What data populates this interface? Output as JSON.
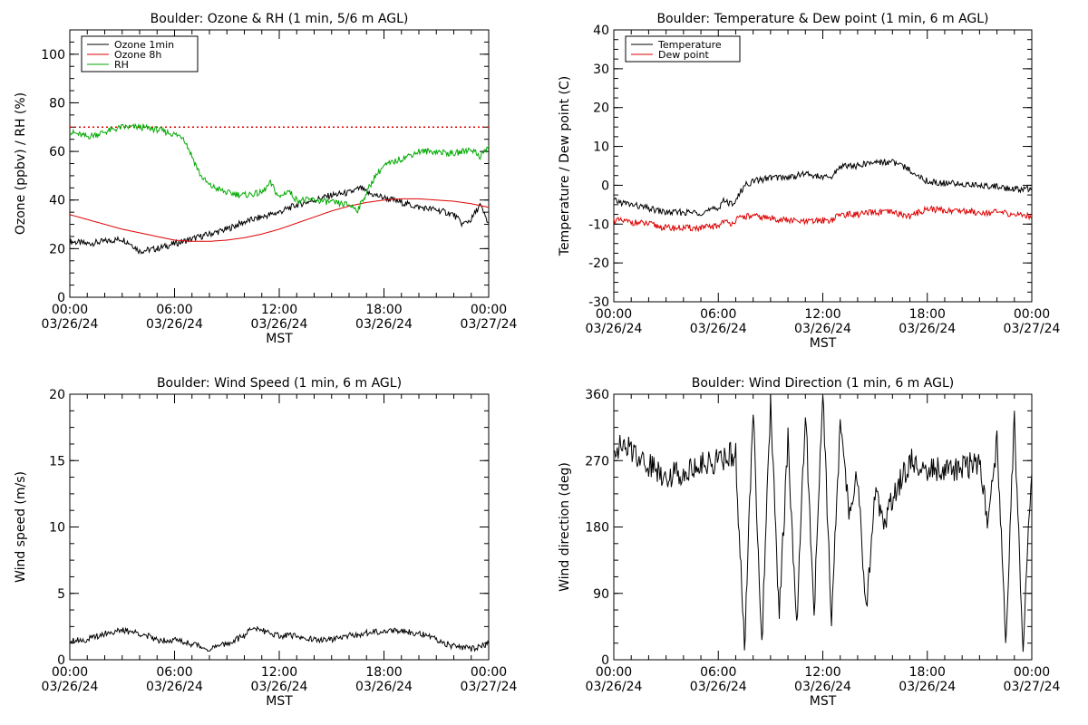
{
  "colors": {
    "black": "#000000",
    "red": "#dd0000",
    "green": "#00aa00",
    "background": "#ffffff"
  },
  "x_axis": {
    "xlabel": "MST",
    "times": [
      "00:00",
      "06:00",
      "12:00",
      "18:00",
      "00:00"
    ],
    "dates": [
      "03/26/24",
      "03/26/24",
      "03/26/24",
      "03/26/24",
      "03/27/24"
    ]
  },
  "chart_data": [
    {
      "id": "ozone",
      "type": "line",
      "title": "Boulder: Ozone & RH (1 min, 5/6 m AGL)",
      "ylabel": "Ozone (ppbv) / RH (%)",
      "xlabel": "",
      "xlim": [
        0,
        24
      ],
      "ylim": [
        0,
        110
      ],
      "yticks": [
        0,
        20,
        40,
        60,
        80,
        100
      ],
      "legend_position": "top-left",
      "reference_lines": [
        {
          "y": 70,
          "style": "dotted",
          "color": "#dd0000"
        }
      ],
      "series": [
        {
          "name": "Ozone 1min",
          "color": "#000000",
          "x": [
            0,
            1,
            2,
            3,
            3.5,
            4,
            5,
            6,
            7,
            8,
            9,
            10,
            11,
            12,
            13,
            14,
            15,
            16,
            16.7,
            17,
            18,
            19,
            20,
            21,
            22,
            22.5,
            23,
            23.5,
            24
          ],
          "y": [
            23,
            22,
            23,
            24,
            22,
            19,
            20,
            22,
            24,
            26,
            28,
            31,
            33,
            35,
            38,
            40,
            42,
            43,
            45,
            43,
            41,
            39,
            37,
            36,
            34,
            30,
            32,
            38,
            30
          ]
        },
        {
          "name": "Ozone 8h",
          "color": "#dd0000",
          "x": [
            0,
            1,
            2,
            3,
            4,
            5,
            6,
            7,
            8,
            9,
            10,
            11,
            12,
            13,
            14,
            15,
            16,
            17,
            18,
            19,
            20,
            21,
            22,
            23,
            24
          ],
          "y": [
            34,
            32,
            30,
            28,
            26.5,
            25,
            23.5,
            23,
            23,
            23.5,
            24.5,
            26,
            28,
            30.5,
            33,
            35.5,
            37.5,
            39,
            40,
            40.5,
            40.5,
            40,
            39.5,
            38.5,
            37
          ]
        },
        {
          "name": "RH",
          "color": "#00aa00",
          "x": [
            0,
            0.5,
            1,
            2,
            3,
            4,
            5,
            5.5,
            6,
            6.5,
            7,
            7.5,
            8,
            9,
            10,
            11,
            11.5,
            12,
            12.5,
            13,
            14,
            15,
            16,
            16.5,
            17,
            17.5,
            18,
            19,
            20,
            21,
            22,
            23,
            23.5,
            24
          ],
          "y": [
            68,
            67,
            66,
            68,
            70,
            70,
            69,
            68,
            67,
            66,
            58,
            50,
            46,
            43,
            42,
            43,
            47,
            41,
            44,
            40,
            40,
            39,
            38,
            36,
            43,
            50,
            54,
            57,
            60,
            60,
            59,
            61,
            58,
            62
          ]
        }
      ]
    },
    {
      "id": "temperature",
      "type": "line",
      "title": "Boulder: Temperature & Dew point (1 min, 6 m AGL)",
      "ylabel": "Temperature / Dew point (C)",
      "xlabel": "MST",
      "xlim": [
        0,
        24
      ],
      "ylim": [
        -30,
        40
      ],
      "yticks": [
        -30,
        -20,
        -10,
        0,
        10,
        20,
        30,
        40
      ],
      "legend_position": "top-left",
      "series": [
        {
          "name": "Temperature",
          "color": "#000000",
          "x": [
            0,
            1,
            2,
            3,
            4,
            5,
            6,
            6.3,
            6.6,
            7,
            7.5,
            8,
            9,
            10,
            11,
            12,
            12.5,
            13,
            14,
            15,
            16,
            17,
            18,
            19,
            20,
            21,
            22,
            23,
            24
          ],
          "y": [
            -4,
            -5,
            -6,
            -7,
            -7,
            -7,
            -6,
            -3.5,
            -5,
            -4,
            0,
            1,
            2,
            2,
            3,
            2,
            2,
            5,
            5,
            6,
            6,
            4,
            1,
            0.5,
            0.3,
            0,
            -0.3,
            -1,
            -1
          ]
        },
        {
          "name": "Dew point",
          "color": "#dd0000",
          "x": [
            0,
            1,
            2,
            3,
            4,
            5,
            6,
            6.3,
            6.6,
            7,
            7.5,
            8,
            9,
            10,
            11,
            12,
            12.5,
            13,
            14,
            15,
            16,
            17,
            18,
            19,
            20,
            21,
            22,
            23,
            24
          ],
          "y": [
            -9,
            -9.5,
            -10,
            -11,
            -11,
            -11,
            -10.5,
            -9,
            -10,
            -9,
            -8,
            -8,
            -8.5,
            -9,
            -9.5,
            -9,
            -9,
            -7.5,
            -7.5,
            -7,
            -7,
            -8,
            -6,
            -6.5,
            -6.5,
            -7,
            -7,
            -7.5,
            -8
          ]
        }
      ]
    },
    {
      "id": "windspeed",
      "type": "line",
      "title": "Boulder: Wind Speed (1 min, 6 m AGL)",
      "ylabel": "Wind speed (m/s)",
      "xlabel": "MST",
      "xlim": [
        0,
        24
      ],
      "ylim": [
        0,
        20
      ],
      "yticks": [
        0,
        5,
        10,
        15,
        20
      ],
      "series": [
        {
          "name": "",
          "color": "#000000",
          "x": [
            0,
            1,
            2,
            3,
            4,
            5,
            6,
            7,
            8,
            9,
            10,
            10.5,
            11,
            12,
            13,
            14,
            15,
            16,
            17,
            18,
            19,
            20,
            21,
            22,
            23,
            24
          ],
          "y": [
            1.5,
            1.5,
            2,
            2.2,
            2,
            1.5,
            1.5,
            1.2,
            0.8,
            1.2,
            1.8,
            2.5,
            2.2,
            1.8,
            1.8,
            1.5,
            1.5,
            1.8,
            2,
            2.2,
            2.2,
            2,
            1.5,
            1,
            0.8,
            1.2
          ]
        }
      ]
    },
    {
      "id": "winddir",
      "type": "line",
      "title": "Boulder: Wind Direction (1 min, 6 m AGL)",
      "ylabel": "Wind direction (deg)",
      "xlabel": "MST",
      "xlim": [
        0,
        24
      ],
      "ylim": [
        0,
        360
      ],
      "yticks": [
        0,
        90,
        180,
        270,
        360
      ],
      "series": [
        {
          "name": "",
          "color": "#000000",
          "x": [
            0,
            1,
            2,
            3,
            4,
            5,
            6,
            7,
            7.5,
            8,
            8.5,
            9,
            9.5,
            10,
            10.5,
            11,
            11.5,
            12,
            12.5,
            13,
            13.5,
            14,
            14.5,
            15,
            15.5,
            16,
            17,
            18,
            19,
            20,
            21,
            21.5,
            22,
            22.5,
            23,
            23.5,
            24
          ],
          "y": [
            290,
            285,
            265,
            250,
            255,
            265,
            270,
            280,
            10,
            340,
            20,
            350,
            60,
            300,
            40,
            340,
            60,
            360,
            60,
            320,
            200,
            250,
            60,
            230,
            180,
            220,
            270,
            260,
            255,
            260,
            270,
            180,
            300,
            20,
            330,
            5,
            270
          ]
        }
      ]
    }
  ]
}
